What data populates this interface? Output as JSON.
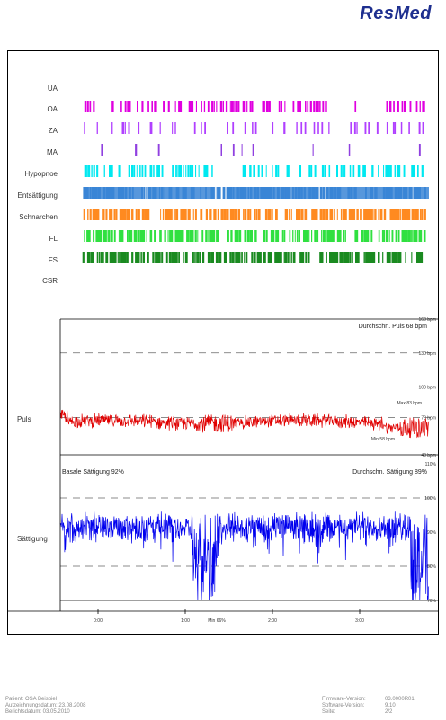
{
  "brand": {
    "logo": "ResMed",
    "color": "#1e2f8f"
  },
  "events": {
    "rows": [
      {
        "label": "UA",
        "color": "#c040ff",
        "density": 0
      },
      {
        "label": "OA",
        "color": "#e000e0",
        "density": 0.55
      },
      {
        "label": "ZA",
        "color": "#b040ff",
        "density": 0.2
      },
      {
        "label": "MA",
        "color": "#9040e0",
        "density": 0.05
      },
      {
        "label": "Hypopnoe",
        "color": "#00e8f0",
        "density": 0.6
      },
      {
        "label": "Entsättigung",
        "color": "#3a85d6",
        "density": 0.9
      },
      {
        "label": "Schnarchen",
        "color": "#ff8a20",
        "density": 0.95
      },
      {
        "label": "FL",
        "color": "#30e040",
        "density": 0.85
      },
      {
        "label": "FS",
        "color": "#1a8a20",
        "density": 0.85
      },
      {
        "label": "CSR",
        "color": "#888888",
        "density": 0
      }
    ]
  },
  "pulse": {
    "label": "Puls",
    "color": "#e00000",
    "avg_text": "Durchschn. Puls 68 bpm",
    "max_text": "Max 83 bpm",
    "min_text": "Min 58 bpm",
    "ticks": [
      {
        "value": 160,
        "text": "160 bpm"
      },
      {
        "value": 130,
        "text": "130 bpm"
      },
      {
        "value": 100,
        "text": "100 bpm"
      },
      {
        "value": 73,
        "text": "73 bpm"
      },
      {
        "value": 40,
        "text": "40 bpm"
      }
    ]
  },
  "spo2": {
    "label": "Sättigung",
    "color": "#0000ee",
    "basal_text": "Basale Sättigung 92%",
    "avg_text": "Durchschn. Sättigung 89%",
    "min_text": "Min 66%",
    "ticks": [
      {
        "value": 110,
        "text": "110%"
      },
      {
        "value": 100,
        "text": "100%"
      },
      {
        "value": 90,
        "text": "90%"
      },
      {
        "value": 80,
        "text": "80%"
      },
      {
        "value": 70,
        "text": "70%"
      }
    ]
  },
  "time_axis": [
    "0:00",
    "1:00",
    "2:00",
    "3:00"
  ],
  "footer": {
    "left": [
      "Patient: OSA Beispiel",
      "Aufzeichnungsdatum: 23.08.2008",
      "Berichtsdatum: 03.05.2010"
    ],
    "right_labels": [
      "Firmware-Version:",
      "Software-Version:",
      "Seite:"
    ],
    "right_values": [
      "03.0000R01",
      "9.10",
      "2/2"
    ]
  }
}
